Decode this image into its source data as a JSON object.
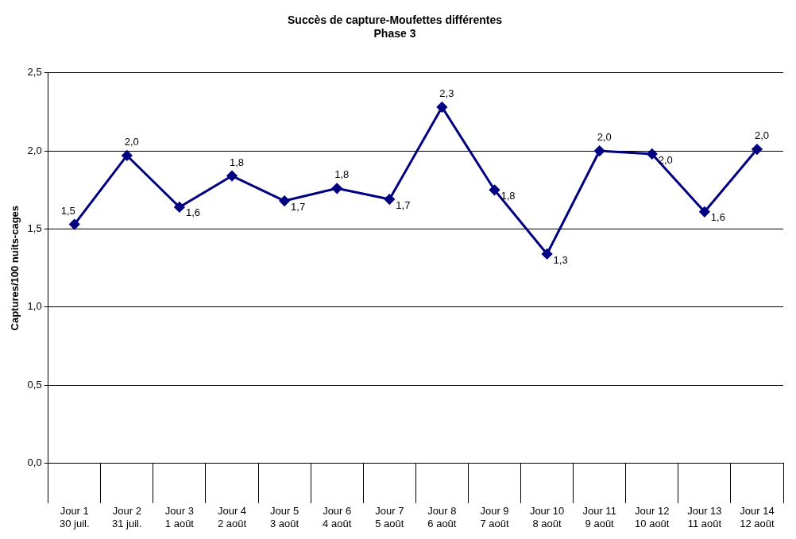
{
  "chart_data": {
    "type": "line",
    "title": "Succès de capture-Moufettes différentes",
    "subtitle": "Phase 3",
    "ylabel": "Captures/100 nuits-cages",
    "categories": [
      "Jour 1\n30 juil.",
      "Jour 2\n31 juil.",
      "Jour 3\n1 août",
      "Jour 4\n2 août",
      "Jour 5\n3 août",
      "Jour 6\n4 août",
      "Jour 7\n5 août",
      "Jour 8\n6 août",
      "Jour 9\n7 août",
      "Jour 10\n8 août",
      "Jour 11\n9 août",
      "Jour 12\n10 août",
      "Jour 13\n11 août",
      "Jour 14\n12 août"
    ],
    "series": [
      {
        "color": "#000080",
        "values": [
          1.53,
          1.97,
          1.64,
          1.84,
          1.68,
          1.76,
          1.69,
          2.28,
          1.75,
          1.34,
          2.0,
          1.98,
          1.61,
          2.01
        ],
        "value_labels": [
          "1,5",
          "2,0",
          "1,6",
          "1,8",
          "1,7",
          "1,8",
          "1,7",
          "2,3",
          "1,8",
          "1,3",
          "2,0",
          "2,0",
          "1,6",
          "2,0"
        ]
      }
    ],
    "ylim": [
      0,
      2.5
    ],
    "yticks": [
      {
        "value": 0,
        "label": "0,0"
      },
      {
        "value": 0.5,
        "label": "0,5"
      },
      {
        "value": 1,
        "label": "1,0"
      },
      {
        "value": 1.5,
        "label": "1,5"
      },
      {
        "value": 2,
        "label": "2,0"
      },
      {
        "value": 2.5,
        "label": "2,5"
      }
    ],
    "grid": "y",
    "legend": false,
    "marker": "diamond",
    "line_style": "solid"
  }
}
